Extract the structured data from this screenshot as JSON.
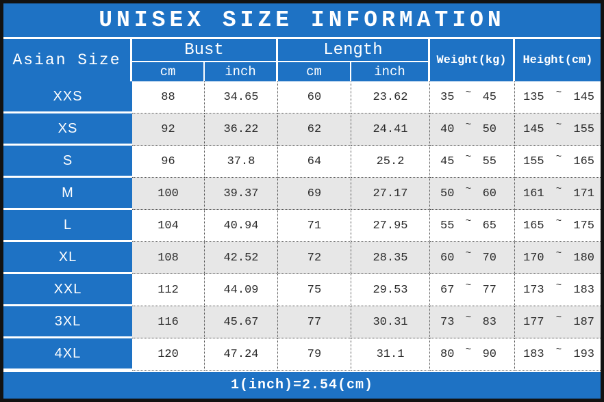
{
  "title": "UNISEX SIZE INFORMATION",
  "header": {
    "asian_size": "Asian Size",
    "bust": "Bust",
    "length": "Length",
    "weight": "Weight(kg)",
    "height": "Height(cm)",
    "unit_cm": "cm",
    "unit_inch": "inch"
  },
  "range_separator": "~",
  "rows": [
    {
      "size": "XXS",
      "bust_cm": "88",
      "bust_inch": "34.65",
      "length_cm": "60",
      "length_inch": "23.62",
      "weight_min": "35",
      "weight_max": "45",
      "height_min": "135",
      "height_max": "145"
    },
    {
      "size": "XS",
      "bust_cm": "92",
      "bust_inch": "36.22",
      "length_cm": "62",
      "length_inch": "24.41",
      "weight_min": "40",
      "weight_max": "50",
      "height_min": "145",
      "height_max": "155"
    },
    {
      "size": "S",
      "bust_cm": "96",
      "bust_inch": "37.8",
      "length_cm": "64",
      "length_inch": "25.2",
      "weight_min": "45",
      "weight_max": "55",
      "height_min": "155",
      "height_max": "165"
    },
    {
      "size": "M",
      "bust_cm": "100",
      "bust_inch": "39.37",
      "length_cm": "69",
      "length_inch": "27.17",
      "weight_min": "50",
      "weight_max": "60",
      "height_min": "161",
      "height_max": "171"
    },
    {
      "size": "L",
      "bust_cm": "104",
      "bust_inch": "40.94",
      "length_cm": "71",
      "length_inch": "27.95",
      "weight_min": "55",
      "weight_max": "65",
      "height_min": "165",
      "height_max": "175"
    },
    {
      "size": "XL",
      "bust_cm": "108",
      "bust_inch": "42.52",
      "length_cm": "72",
      "length_inch": "28.35",
      "weight_min": "60",
      "weight_max": "70",
      "height_min": "170",
      "height_max": "180"
    },
    {
      "size": "XXL",
      "bust_cm": "112",
      "bust_inch": "44.09",
      "length_cm": "75",
      "length_inch": "29.53",
      "weight_min": "67",
      "weight_max": "77",
      "height_min": "173",
      "height_max": "183"
    },
    {
      "size": "3XL",
      "bust_cm": "116",
      "bust_inch": "45.67",
      "length_cm": "77",
      "length_inch": "30.31",
      "weight_min": "73",
      "weight_max": "83",
      "height_min": "177",
      "height_max": "187"
    },
    {
      "size": "4XL",
      "bust_cm": "120",
      "bust_inch": "47.24",
      "length_cm": "79",
      "length_inch": "31.1",
      "weight_min": "80",
      "weight_max": "90",
      "height_min": "183",
      "height_max": "193"
    }
  ],
  "footer": "1(inch)=2.54(cm)",
  "colors": {
    "primary_blue": "#1e72c4",
    "alt_row_gray": "#e7e7e7",
    "base_row_white": "#ffffff",
    "outer_border_black": "#121212",
    "text_white": "#ffffff",
    "text_dark": "#2b2b2b"
  }
}
